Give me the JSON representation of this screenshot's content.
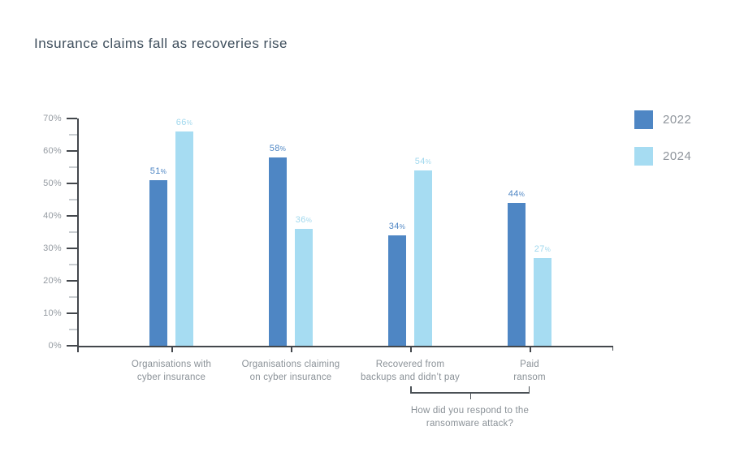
{
  "chart_data": {
    "type": "bar",
    "title": "Insurance claims fall as recoveries rise",
    "categories": [
      [
        "Organisations with",
        "cyber insurance"
      ],
      [
        "Organisations claiming",
        "on cyber insurance"
      ],
      [
        "Recovered from",
        "backups and didn’t pay"
      ],
      [
        "Paid",
        "ransom"
      ]
    ],
    "series": [
      {
        "name": "2022",
        "color": "#4E86C4",
        "label_color": "#4E86C4",
        "values": [
          51,
          58,
          34,
          44
        ]
      },
      {
        "name": "2024",
        "color": "#A6DCF2",
        "label_color": "#A0D8EE",
        "values": [
          66,
          36,
          54,
          27
        ]
      }
    ],
    "value_suffix": "%",
    "y_axis": {
      "min": 0,
      "max": 70,
      "major_step": 10,
      "minor_step": 5,
      "tick_labels": [
        "0%",
        "10%",
        "20%",
        "30%",
        "40%",
        "50%",
        "60%",
        "70%"
      ]
    },
    "grid": false,
    "legend_position": "top-right",
    "annotation": {
      "lines": [
        "How did you respond to the",
        "ransomware attack?"
      ],
      "span_categories": [
        2,
        3
      ]
    }
  },
  "colors": {
    "accent_2022": "#4E86C4",
    "accent_2024": "#A6DCF2",
    "axis": "#43474C",
    "minor_tick": "#C9CDD1",
    "text_muted": "#8A9197",
    "title_text": "#3E4E5C"
  }
}
